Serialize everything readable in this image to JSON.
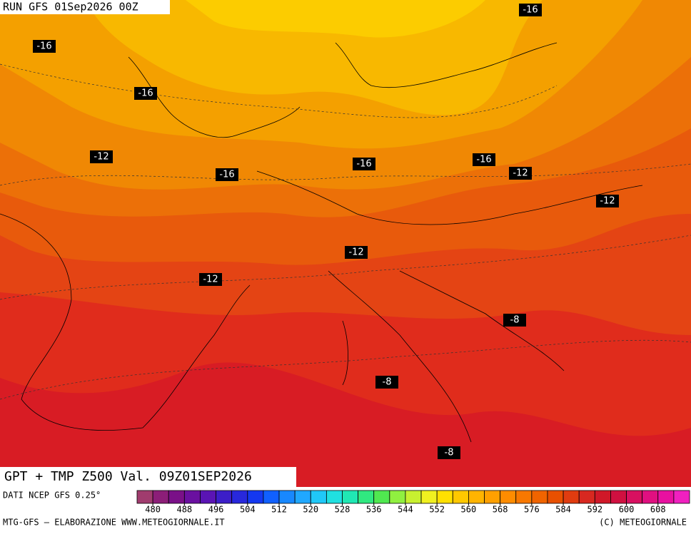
{
  "header": {
    "run": "RUN GFS 01Sep2026 00Z"
  },
  "map": {
    "labels": [
      "-16",
      "-16",
      "-16",
      "-12",
      "-16",
      "-16",
      "-16",
      "-12",
      "-12",
      "-12",
      "-12",
      "-8",
      "-8",
      "-8"
    ]
  },
  "footer": {
    "title": "GPT + TMP Z500 Val. 09Z01SEP2026",
    "source": "DATI NCEP GFS 0.25°",
    "credit_left": "MTG-GFS – ELABORAZIONE WWW.METEOGIORNALE.IT",
    "credit_right": "(C) METEOGIORNALE"
  },
  "colorbar": {
    "ticks": [
      480,
      488,
      496,
      504,
      512,
      520,
      528,
      536,
      544,
      552,
      560,
      568,
      576,
      584,
      592,
      600,
      608
    ],
    "colors": [
      "#a03c6e",
      "#8c1e78",
      "#7a1088",
      "#6a10a0",
      "#5a14b4",
      "#3c1ec8",
      "#2828dc",
      "#1438f0",
      "#1060ff",
      "#1888ff",
      "#20a8ff",
      "#20c8f8",
      "#20e0e0",
      "#20e8b4",
      "#30e880",
      "#50e850",
      "#90f040",
      "#c8f030",
      "#f0f020",
      "#ffe000",
      "#ffc800",
      "#ffb400",
      "#ffa000",
      "#ff8c00",
      "#f87800",
      "#f06400",
      "#e85000",
      "#e03c10",
      "#d82820",
      "#d01828",
      "#d01040",
      "#d81060",
      "#e01080",
      "#e810a0",
      "#f020c0"
    ]
  }
}
